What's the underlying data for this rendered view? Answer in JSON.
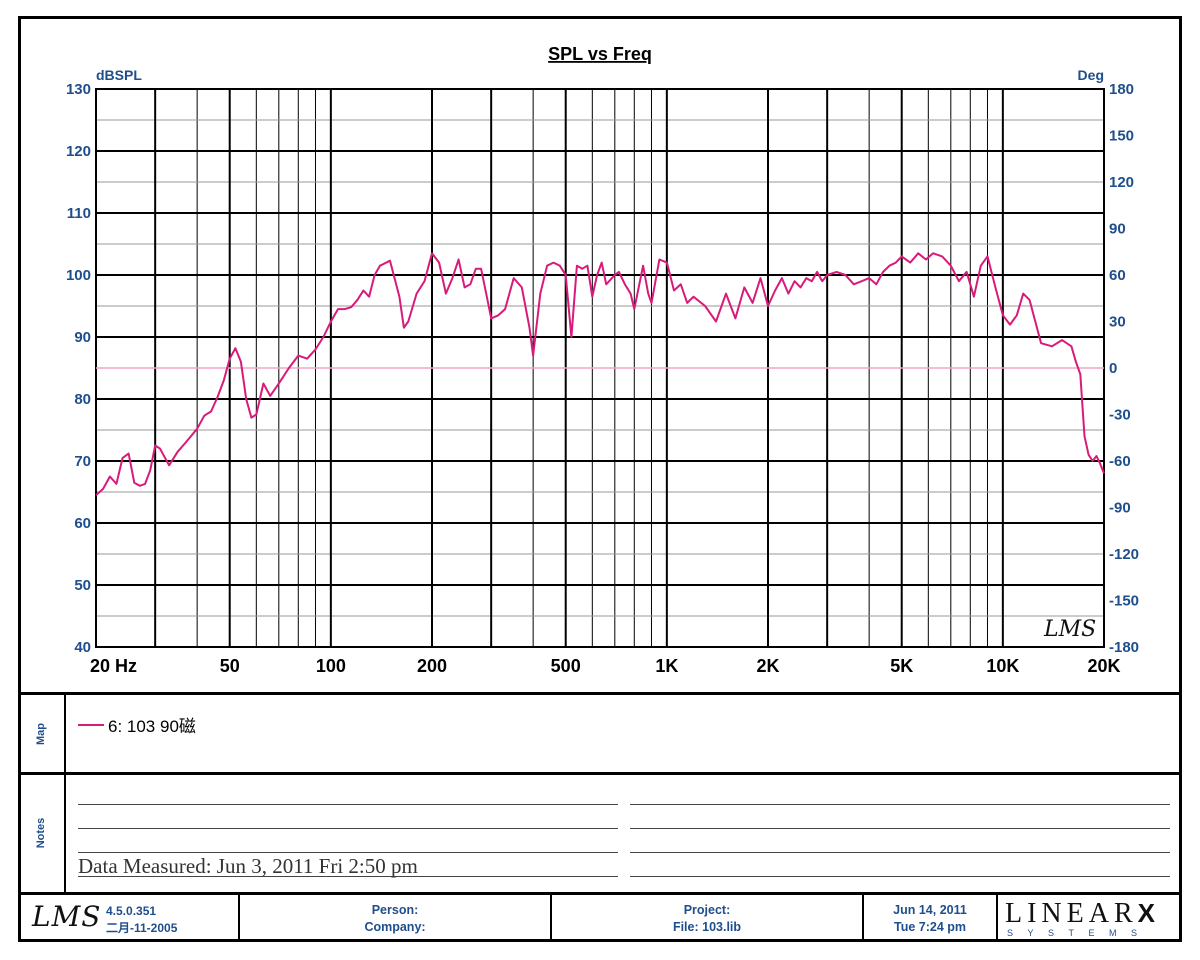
{
  "chart_data": {
    "type": "line",
    "title": "SPL vs Freq",
    "ylabel_left": "dBSPL",
    "ylabel_right": "Deg",
    "x_scale": "log",
    "xlim": [
      20,
      20000
    ],
    "ylim": [
      40,
      130
    ],
    "y2lim": [
      -180,
      180
    ],
    "x_ticks": [
      20,
      50,
      100,
      200,
      500,
      1000,
      2000,
      5000,
      10000,
      20000
    ],
    "x_tick_labels": [
      "20  Hz",
      "50",
      "100",
      "200",
      "500",
      "1K",
      "2K",
      "5K",
      "10K",
      "20K"
    ],
    "y_ticks": [
      40,
      50,
      60,
      70,
      80,
      90,
      100,
      110,
      120,
      130
    ],
    "y_tick_labels": [
      "40",
      "50",
      "60",
      "70",
      "80",
      "90",
      "100",
      "110",
      "120",
      "130"
    ],
    "y2_ticks": [
      180,
      150,
      120,
      90,
      60,
      30,
      0,
      -30,
      -60,
      -90,
      -120,
      -150,
      -180
    ],
    "y2_tick_labels": [
      "180",
      "150",
      "120",
      "90",
      "60",
      "30",
      "0",
      "-30",
      "-60",
      "-90",
      "-120",
      "-150",
      "-180"
    ],
    "grid": true,
    "reference_line": {
      "axis": "right",
      "value": 0,
      "color": "#f2a7c7"
    },
    "watermark": "LMS",
    "series": [
      {
        "name": "6: 103  90磁",
        "color": "#d81b7a",
        "x": [
          20,
          21,
          22,
          23,
          24,
          25,
          26,
          27,
          28,
          29,
          30,
          31,
          33,
          35,
          37,
          40,
          42,
          44,
          46,
          48,
          50,
          52,
          54,
          56,
          58,
          60,
          63,
          66,
          69,
          72,
          75,
          80,
          85,
          90,
          95,
          100,
          105,
          110,
          115,
          120,
          125,
          130,
          135,
          140,
          150,
          160,
          165,
          170,
          180,
          190,
          200,
          210,
          220,
          230,
          240,
          250,
          260,
          270,
          280,
          290,
          300,
          315,
          330,
          350,
          370,
          390,
          400,
          420,
          440,
          460,
          480,
          500,
          520,
          540,
          560,
          580,
          600,
          620,
          640,
          660,
          700,
          720,
          750,
          780,
          800,
          850,
          880,
          900,
          950,
          1000,
          1050,
          1100,
          1150,
          1200,
          1300,
          1400,
          1500,
          1600,
          1700,
          1800,
          1900,
          2000,
          2100,
          2200,
          2300,
          2400,
          2500,
          2600,
          2700,
          2800,
          2900,
          3000,
          3200,
          3400,
          3600,
          3800,
          4000,
          4200,
          4400,
          4600,
          4800,
          5000,
          5300,
          5600,
          5900,
          6200,
          6600,
          7000,
          7400,
          7800,
          8200,
          8600,
          9000,
          9500,
          10000,
          10500,
          11000,
          11500,
          12000,
          13000,
          14000,
          15000,
          16000,
          16500,
          17000,
          17500,
          18000,
          18500,
          19000,
          19500,
          20000
        ],
        "y": [
          64.5,
          65.5,
          67.5,
          66.3,
          70.5,
          71.2,
          66.5,
          66.0,
          66.3,
          68.5,
          72.5,
          72.0,
          69.3,
          71.5,
          73.0,
          75.2,
          77.3,
          78.0,
          80.3,
          83.0,
          86.5,
          88.2,
          86.0,
          80.0,
          77.0,
          77.5,
          82.5,
          80.5,
          82.0,
          83.5,
          85.0,
          87.0,
          86.5,
          88.0,
          90.0,
          92.5,
          94.5,
          94.5,
          94.8,
          96.0,
          97.5,
          96.5,
          100.0,
          101.5,
          102.3,
          96.5,
          91.5,
          92.5,
          97.0,
          99.0,
          103.5,
          102.0,
          97.0,
          99.5,
          102.5,
          98.0,
          98.5,
          101.0,
          101.0,
          97.0,
          93.0,
          93.5,
          94.5,
          99.5,
          98.0,
          91.5,
          87.0,
          97.0,
          101.5,
          102.0,
          101.5,
          100.0,
          90.0,
          101.5,
          101.0,
          101.5,
          96.5,
          100.0,
          102.0,
          98.5,
          100.0,
          100.5,
          98.5,
          97.0,
          94.5,
          101.5,
          97.0,
          95.5,
          102.5,
          102.0,
          97.5,
          98.5,
          95.5,
          96.5,
          95.0,
          92.5,
          97.0,
          93.0,
          98.0,
          95.5,
          99.5,
          95.0,
          97.5,
          99.5,
          97.0,
          99.0,
          98.0,
          99.5,
          99.0,
          100.5,
          99.0,
          100.0,
          100.5,
          100.0,
          98.5,
          99.0,
          99.5,
          98.5,
          100.5,
          101.5,
          102.0,
          103.0,
          102.0,
          103.5,
          102.5,
          103.5,
          103.0,
          101.5,
          99.0,
          100.5,
          96.5,
          101.5,
          103.0,
          98.0,
          93.5,
          92.0,
          93.5,
          97.0,
          96.0,
          89.0,
          88.5,
          89.5,
          88.5,
          86.0,
          84.0,
          74.0,
          71.0,
          70.0,
          70.8,
          69.5,
          68.0
        ]
      }
    ]
  },
  "map": {
    "label": "Map",
    "legend_text": "6: 103  90磁"
  },
  "notes": {
    "label": "Notes",
    "text": "Data Measured: Jun  3, 2011  Fri  2:50 pm"
  },
  "footer": {
    "logo": "LMS",
    "version": "4.5.0.351",
    "build_date": "二月-11-2005",
    "person_label": "Person:",
    "company_label": "Company:",
    "project_label": "Project:",
    "file_label": "File: 103.lib",
    "date": "Jun 14, 2011",
    "time": "Tue  7:24 pm",
    "brand_name": "LINEAR",
    "brand_x": "X",
    "brand_sub": "SYSTEMS"
  }
}
